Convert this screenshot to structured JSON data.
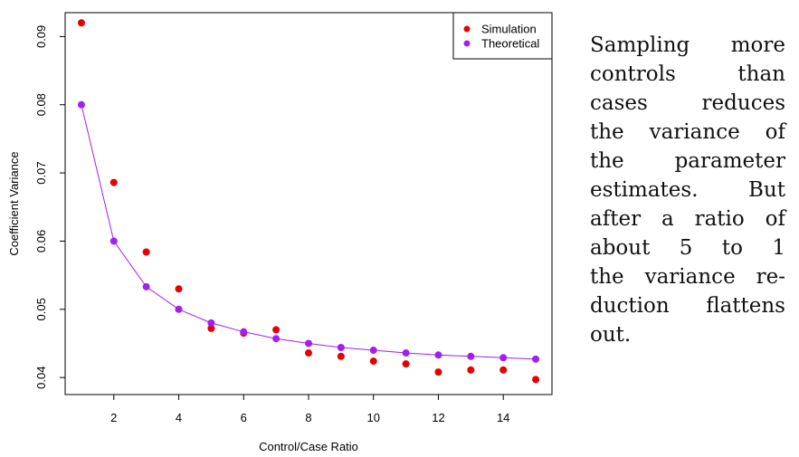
{
  "chart_data": {
    "type": "scatter",
    "xlabel": "Control/Case Ratio",
    "ylabel": "Coefficient Variance",
    "xlim": [
      0.5,
      15.5
    ],
    "ylim": [
      0.0375,
      0.0935
    ],
    "x_ticks": [
      2,
      4,
      6,
      8,
      10,
      12,
      14
    ],
    "y_ticks": [
      0.04,
      0.05,
      0.06,
      0.07,
      0.08,
      0.09
    ],
    "y_tick_labels": [
      "0.04",
      "0.05",
      "0.06",
      "0.07",
      "0.08",
      "0.09"
    ],
    "grid": false,
    "legend_position": "top-right",
    "series": [
      {
        "name": "Simulation",
        "color": "#e60000",
        "marker": "point",
        "line": false,
        "x": [
          1,
          2,
          3,
          4,
          5,
          6,
          7,
          8,
          9,
          10,
          11,
          12,
          13,
          14,
          15
        ],
        "y": [
          0.092,
          0.0686,
          0.0584,
          0.053,
          0.0472,
          0.0465,
          0.047,
          0.0436,
          0.0431,
          0.0424,
          0.042,
          0.0408,
          0.0411,
          0.0411,
          0.0397
        ]
      },
      {
        "name": "Theoretical",
        "color": "#a020f0",
        "marker": "point",
        "line": true,
        "x": [
          1,
          2,
          3,
          4,
          5,
          6,
          7,
          8,
          9,
          10,
          11,
          12,
          13,
          14,
          15
        ],
        "y": [
          0.08,
          0.06,
          0.0533,
          0.05,
          0.048,
          0.0467,
          0.0457,
          0.045,
          0.0444,
          0.044,
          0.0436,
          0.0433,
          0.0431,
          0.0429,
          0.0427
        ]
      }
    ]
  },
  "caption": {
    "lines": [
      "Sampling more",
      "controls than",
      "cases reduces",
      "the variance of",
      "the parameter",
      "estimates. But",
      "after a ratio of",
      "about 5 to 1",
      "the variance re-",
      "duction flattens",
      "out."
    ]
  }
}
